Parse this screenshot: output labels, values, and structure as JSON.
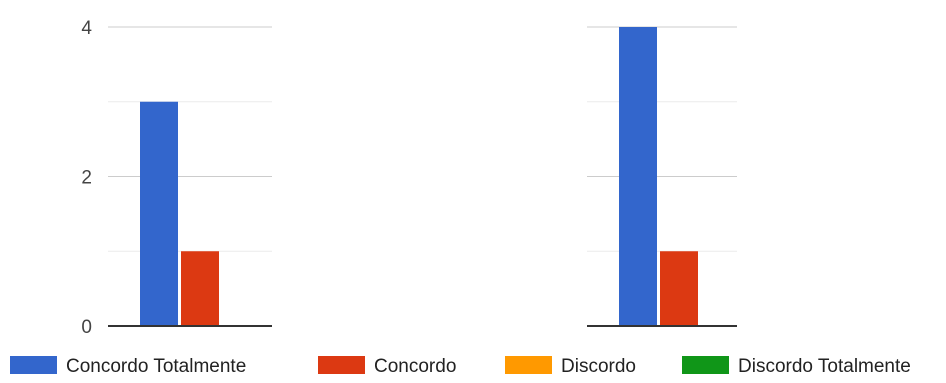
{
  "chart_data": {
    "type": "bar",
    "categories": [
      "",
      ""
    ],
    "series": [
      {
        "name": "Concordo Totalmente",
        "color": "#3366cc",
        "values": [
          3,
          4
        ]
      },
      {
        "name": "Concordo",
        "color": "#dc3912",
        "values": [
          1,
          1
        ]
      },
      {
        "name": "Discordo",
        "color": "#ff9900",
        "values": [
          0,
          0
        ]
      },
      {
        "name": "Discordo Totalmente",
        "color": "#109618",
        "values": [
          0,
          0
        ]
      }
    ],
    "title": "",
    "xlabel": "",
    "ylabel": "",
    "ylim": [
      0,
      4
    ],
    "yticks": [
      0,
      2,
      4
    ],
    "grid": true,
    "legend": "bottom"
  }
}
